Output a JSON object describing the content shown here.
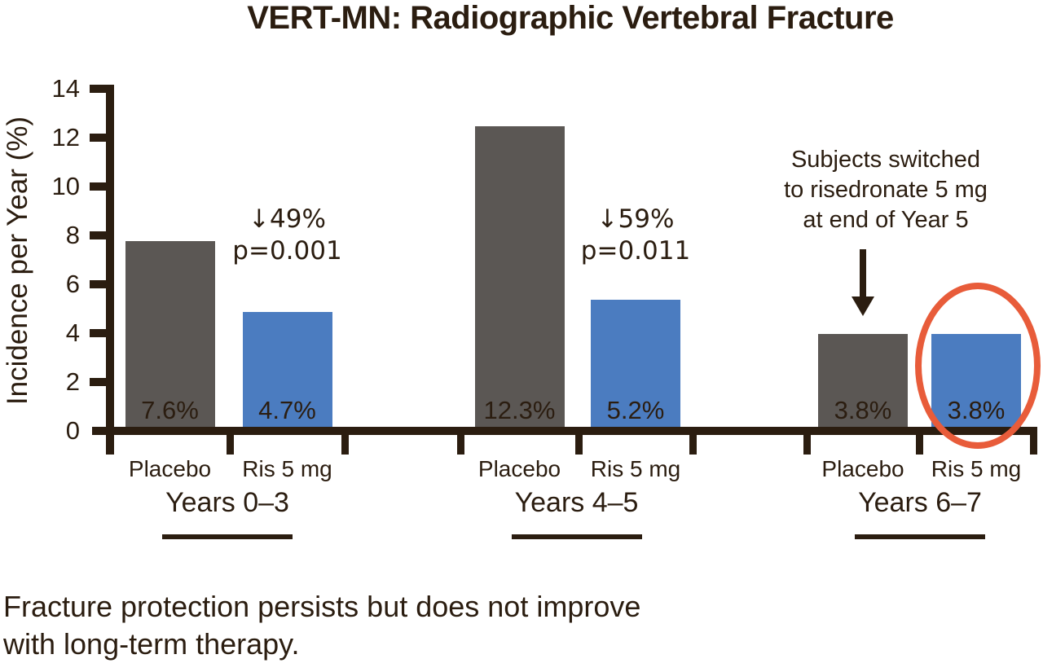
{
  "colors": {
    "placebo_bar": "#5b5754",
    "risedronate_bar": "#4b7cc0",
    "highlight_circle": "#e85c3a",
    "ink": "#2b1d10"
  },
  "caption_lines": [
    "Fracture protection persists but does not improve",
    "with long-term therapy."
  ],
  "chart_data": {
    "type": "bar",
    "title": "VERT-MN: Radiographic Vertebral Fracture",
    "xlabel": "",
    "ylabel": "Incidence per Year (%)",
    "ylim": [
      0,
      14
    ],
    "yticks": [
      0,
      2,
      4,
      6,
      8,
      10,
      12,
      14
    ],
    "grid": false,
    "legend": false,
    "series_names": [
      "Placebo",
      "Ris 5 mg"
    ],
    "groups": [
      {
        "label": "Years 0–3",
        "bars": [
          {
            "series": "Placebo",
            "value": 7.6,
            "display": "7.6%"
          },
          {
            "series": "Ris 5 mg",
            "value": 4.7,
            "display": "4.7%"
          }
        ],
        "annotation": {
          "line1": "↓49%",
          "line2": "p=0.001"
        }
      },
      {
        "label": "Years 4–5",
        "bars": [
          {
            "series": "Placebo",
            "value": 12.3,
            "display": "12.3%"
          },
          {
            "series": "Ris 5 mg",
            "value": 5.2,
            "display": "5.2%"
          }
        ],
        "annotation": {
          "line1": "↓59%",
          "line2": "p=0.011"
        }
      },
      {
        "label": "Years 6–7",
        "bars": [
          {
            "series": "Placebo",
            "value": 3.8,
            "display": "3.8%"
          },
          {
            "series": "Ris 5 mg",
            "value": 3.8,
            "display": "3.8%",
            "circled": true
          }
        ],
        "callout_lines": [
          "Subjects switched",
          "to risedronate 5 mg",
          "at end of Year 5"
        ]
      }
    ]
  }
}
